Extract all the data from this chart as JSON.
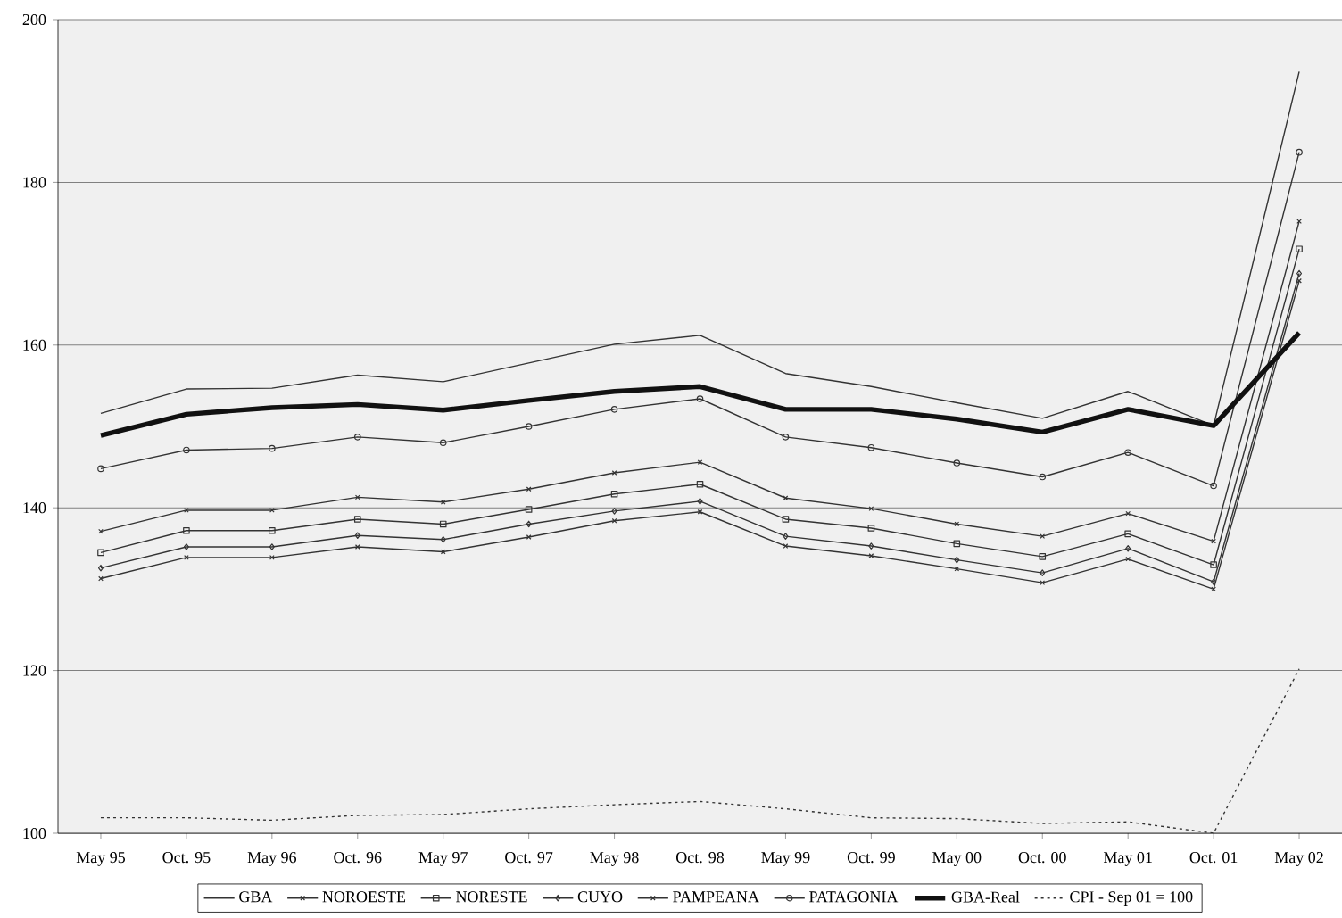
{
  "chart_data": {
    "type": "line",
    "categories": [
      "May 95",
      "Oct. 95",
      "May 96",
      "Oct. 96",
      "May 97",
      "Oct. 97",
      "May 98",
      "Oct. 98",
      "May 99",
      "Oct. 99",
      "May 00",
      "Oct. 00",
      "May 01",
      "Oct. 01",
      "May 02"
    ],
    "ylim": [
      100,
      200
    ],
    "yticks": [
      100,
      120,
      140,
      160,
      180,
      200
    ],
    "grid": "y",
    "legend": "bottom",
    "series": [
      {
        "name": "GBA",
        "color": "#333333",
        "marker": "none",
        "line_style": "solid",
        "values": [
          151.6,
          154.6,
          154.7,
          156.3,
          155.5,
          157.8,
          160.1,
          161.2,
          156.5,
          154.9,
          152.9,
          151.0,
          154.3,
          150.1,
          193.6
        ]
      },
      {
        "name": "NOROESTE",
        "color": "#333333",
        "marker": "cross",
        "line_style": "solid",
        "values": [
          131.3,
          133.9,
          133.9,
          135.2,
          134.6,
          136.4,
          138.4,
          139.5,
          135.3,
          134.1,
          132.5,
          130.8,
          133.7,
          130.0,
          167.9
        ]
      },
      {
        "name": "NORESTE",
        "color": "#333333",
        "marker": "square",
        "line_style": "solid",
        "values": [
          134.5,
          137.2,
          137.2,
          138.6,
          138.0,
          139.8,
          141.7,
          142.9,
          138.6,
          137.5,
          135.6,
          134.0,
          136.8,
          133.0,
          171.8
        ]
      },
      {
        "name": "CUYO",
        "color": "#333333",
        "marker": "diamond",
        "line_style": "solid",
        "values": [
          132.6,
          135.2,
          135.2,
          136.6,
          136.1,
          138.0,
          139.6,
          140.8,
          136.5,
          135.3,
          133.6,
          132.0,
          135.0,
          130.9,
          168.8
        ]
      },
      {
        "name": "PAMPEANA",
        "color": "#333333",
        "marker": "cross",
        "line_style": "solid",
        "values": [
          137.1,
          139.7,
          139.7,
          141.3,
          140.7,
          142.3,
          144.3,
          145.6,
          141.2,
          139.9,
          138.0,
          136.5,
          139.3,
          135.9,
          175.2
        ]
      },
      {
        "name": "PATAGONIA",
        "color": "#333333",
        "marker": "circle",
        "line_style": "solid",
        "values": [
          144.8,
          147.1,
          147.3,
          148.7,
          148.0,
          150.0,
          152.1,
          153.4,
          148.7,
          147.4,
          145.5,
          143.8,
          146.8,
          142.7,
          183.7
        ]
      },
      {
        "name": "GBA-Real",
        "color": "#111111",
        "marker": "none",
        "line_style": "solid",
        "values": [
          148.9,
          151.5,
          152.3,
          152.7,
          152.0,
          153.2,
          154.3,
          154.9,
          152.1,
          152.1,
          150.9,
          149.3,
          152.1,
          150.1,
          161.5
        ]
      },
      {
        "name": "CPI - Sep 01 = 100",
        "color": "#333333",
        "marker": "none",
        "line_style": "dotted",
        "values": [
          101.9,
          101.9,
          101.6,
          102.2,
          102.3,
          103.0,
          103.5,
          103.9,
          103.0,
          101.9,
          101.8,
          101.2,
          101.4,
          100.0,
          120.2
        ]
      }
    ]
  }
}
